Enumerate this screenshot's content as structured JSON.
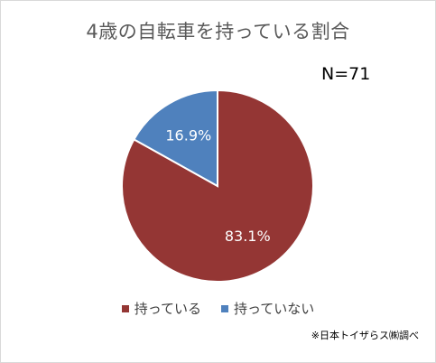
{
  "chart_data": {
    "type": "pie",
    "title": "4歳の自転車を持っている割合",
    "annotation": "N=71",
    "categories": [
      "持っている",
      "持っていない"
    ],
    "values": [
      83.1,
      16.9
    ],
    "data_labels": [
      "83.1%",
      "16.9%"
    ],
    "colors": [
      "#943634",
      "#4f81bd"
    ],
    "legend_position": "bottom",
    "start_angle_deg": 0,
    "direction": "clockwise",
    "source": "※日本トイザらス㈱調べ"
  }
}
